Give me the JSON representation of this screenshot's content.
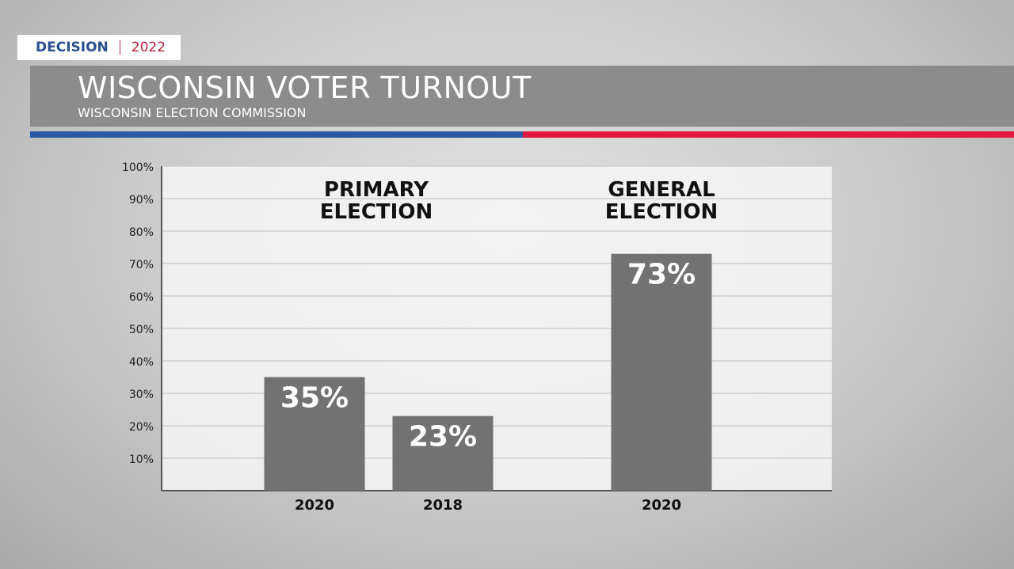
{
  "brand": {
    "name": "DECISION",
    "year": "2022"
  },
  "chart_data": {
    "type": "bar",
    "title": "WISCONSIN VOTER TURNOUT",
    "subtitle": "WISCONSIN ELECTION COMMISSION",
    "groups": [
      "PRIMARY ELECTION",
      "GENERAL ELECTION"
    ],
    "categories": [
      "2020",
      "2018",
      "2020"
    ],
    "values": [
      35,
      23,
      73
    ],
    "value_labels": [
      "35%",
      "23%",
      "73%"
    ],
    "color": "#727272",
    "ylim": [
      0,
      100
    ],
    "yticks": [
      {
        "value": 10,
        "label": "10%"
      },
      {
        "value": 20,
        "label": "20%"
      },
      {
        "value": 30,
        "label": "30%"
      },
      {
        "value": 40,
        "label": "40%"
      },
      {
        "value": 50,
        "label": "50%"
      },
      {
        "value": 60,
        "label": "60%"
      },
      {
        "value": 70,
        "label": "70%"
      },
      {
        "value": 80,
        "label": "80%"
      },
      {
        "value": 90,
        "label": "90%"
      },
      {
        "value": 100,
        "label": "100%"
      }
    ],
    "grid": true
  }
}
